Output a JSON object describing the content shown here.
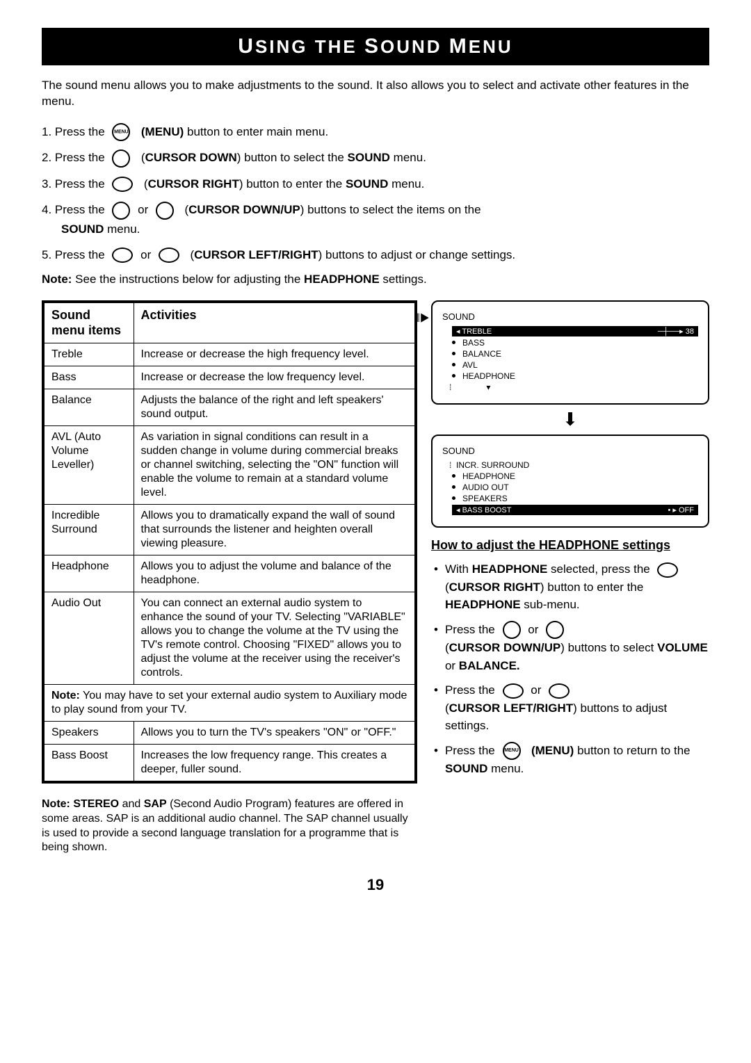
{
  "title": {
    "pre": "U",
    "mid1": "SING THE ",
    "mid2": "S",
    "mid3": "OUND ",
    "mid4": "M",
    "post": "ENU"
  },
  "intro": "The sound menu allows you to make adjustments to the sound. It also allows you to select and activate other features in the menu.",
  "steps": {
    "s1a": "1. Press the ",
    "s1b": " (MENU) button to enter main menu.",
    "s2a": "2. Press the ",
    "s2b": " (CURSOR DOWN) button to select the ",
    "s2c": "SOUND",
    "s2d": " menu.",
    "s3a": "3. Press the ",
    "s3b": " (CURSOR RIGHT) button to enter the ",
    "s3c": "SOUND",
    "s3d": " menu.",
    "s4a": "4. Press the ",
    "s4b": " or ",
    "s4c": " (CURSOR DOWN/UP) buttons to select the items on the",
    "s4d": "SOUND",
    "s4e": " menu.",
    "s5a": "5. Press the ",
    "s5b": " or ",
    "s5c": "(CURSOR LEFT/RIGHT) buttons to adjust or change settings."
  },
  "menu_label": "MENU",
  "note_line_a": "Note:",
  "note_line_b": " See the instructions below for adjusting the ",
  "note_line_c": "HEADPHONE",
  "note_line_d": " settings.",
  "table": {
    "h1": "Sound menu items",
    "h2": "Activities",
    "rows": [
      {
        "item": "Treble",
        "act": "Increase or decrease the high frequency level."
      },
      {
        "item": "Bass",
        "act": "Increase or decrease the low frequency level."
      },
      {
        "item": "Balance",
        "act": "Adjusts the balance of the right and left speakers' sound output."
      },
      {
        "item": "AVL (Auto Volume Leveller)",
        "act": "As variation in signal conditions can result in a sudden change in volume during commercial breaks or channel switching, selecting the \"ON\" function will enable the volume to remain at a standard volume level."
      },
      {
        "item": "Incredible Surround",
        "act": "Allows you to dramatically expand the wall of sound that surrounds the listener and heighten overall viewing pleasure."
      },
      {
        "item": "Headphone",
        "act": "Allows you to adjust the volume and balance of the headphone."
      },
      {
        "item": "Audio Out",
        "act": "You can connect an external audio system to enhance the sound of your TV. Selecting \"VARIABLE\" allows you to change the volume at the TV using the TV's remote control. Choosing \"FIXED\" allows you to adjust the volume at the receiver using the receiver's controls."
      }
    ],
    "note_row_a": "Note:",
    "note_row_b": " You may have to set your external audio system to Auxiliary mode to play sound from your TV.",
    "rows2": [
      {
        "item": "Speakers",
        "act": "Allows you to turn the TV's speakers \"ON\" or \"OFF.\""
      },
      {
        "item": "Bass Boost",
        "act": "Increases the low frequency range. This creates a deeper, fuller sound."
      }
    ]
  },
  "osd1": {
    "title": "SOUND",
    "sel": "◂ TREBLE",
    "val": "38",
    "items": [
      "BASS",
      "BALANCE",
      "AVL",
      "HEADPHONE"
    ]
  },
  "osd2": {
    "title": "SOUND",
    "items": [
      "INCR.  SURROUND",
      "HEADPHONE",
      "AUDIO OUT",
      "SPEAKERS"
    ],
    "sel": "◂ BASS BOOST",
    "val": "• ▸ OFF"
  },
  "hp": {
    "title": "How to adjust the HEADPHONE settings",
    "li1a": "With ",
    "li1b": "HEADPHONE",
    "li1c": " selected, press the ",
    "li1d": "(CURSOR RIGHT)",
    "li1e": " button to enter the ",
    "li1f": "HEADPHONE",
    "li1g": " sub-menu.",
    "li2a": "Press the ",
    "li2b": " or ",
    "li2c": "(CURSOR DOWN/UP)",
    "li2d": " buttons to select ",
    "li2e": "VOLUME",
    "li2f": " or ",
    "li2g": "BALANCE.",
    "li3a": "Press the ",
    "li3b": " or ",
    "li3c": "(CURSOR LEFT/RIGHT)",
    "li3d": " buttons to adjust settings.",
    "li4a": "Press the ",
    "li4b": "(MENU)",
    "li4c": " button to return to the ",
    "li4d": "SOUND",
    "li4e": " menu."
  },
  "footnote_a": "Note: STEREO",
  "footnote_b": " and ",
  "footnote_c": "SAP",
  "footnote_d": " (Second Audio Program) features are offered in some areas.  SAP is an additional audio channel. The SAP channel usually is used to provide a second language translation for a programme that is being shown.",
  "page": "19"
}
